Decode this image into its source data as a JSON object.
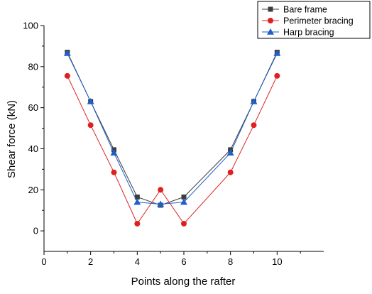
{
  "chart_data": {
    "type": "line",
    "xlabel": "Points along the rafter",
    "ylabel": "Shear force (kN)",
    "xlim": [
      0,
      12
    ],
    "ylim": [
      -10,
      100
    ],
    "xticks": [
      0,
      2,
      4,
      6,
      8,
      10
    ],
    "yticks": [
      0,
      20,
      40,
      60,
      80,
      100
    ],
    "grid": false,
    "legend": "top-right",
    "series": [
      {
        "name": "Bare frame",
        "color": "#3d3d3d",
        "marker": "square",
        "x": [
          1,
          2,
          3,
          4,
          5,
          6,
          8,
          9,
          10
        ],
        "y": [
          87,
          63,
          39.5,
          16.5,
          12.5,
          16.5,
          39.5,
          63,
          87
        ]
      },
      {
        "name": "Perimeter bracing",
        "color": "#e02020",
        "marker": "circle",
        "x": [
          1,
          2,
          3,
          4,
          5,
          6,
          8,
          9,
          10
        ],
        "y": [
          75.5,
          51.5,
          28.5,
          3.5,
          20,
          3.5,
          28.5,
          51.5,
          75.5
        ]
      },
      {
        "name": "Harp bracing",
        "color": "#1f5fc8",
        "marker": "triangle",
        "x": [
          1,
          2,
          3,
          4,
          5,
          6,
          8,
          9,
          10
        ],
        "y": [
          86.5,
          63,
          38,
          14,
          13,
          14,
          38,
          63,
          86.5
        ]
      }
    ]
  }
}
